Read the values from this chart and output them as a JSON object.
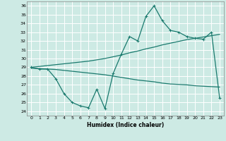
{
  "xlabel": "Humidex (Indice chaleur)",
  "bg_color": "#cdeae4",
  "grid_color": "#ffffff",
  "line_color": "#1a7a6e",
  "xlim": [
    -0.5,
    23.5
  ],
  "ylim": [
    23.5,
    36.5
  ],
  "yticks": [
    24,
    25,
    26,
    27,
    28,
    29,
    30,
    31,
    32,
    33,
    34,
    35,
    36
  ],
  "xticks": [
    0,
    1,
    2,
    3,
    4,
    5,
    6,
    7,
    8,
    9,
    10,
    11,
    12,
    13,
    14,
    15,
    16,
    17,
    18,
    19,
    20,
    21,
    22,
    23
  ],
  "line1_x": [
    0,
    1,
    2,
    3,
    4,
    5,
    6,
    7,
    8,
    9,
    10,
    11,
    12,
    13,
    14,
    15,
    16,
    17,
    18,
    19,
    20,
    21,
    22,
    23
  ],
  "line1_y": [
    29.0,
    28.8,
    28.8,
    27.7,
    26.0,
    25.0,
    24.6,
    24.4,
    26.5,
    24.3,
    28.3,
    30.5,
    32.5,
    32.0,
    34.8,
    36.0,
    34.3,
    33.2,
    33.0,
    32.5,
    32.3,
    32.2,
    33.0,
    25.5
  ],
  "line2_x": [
    0,
    1,
    2,
    3,
    4,
    5,
    6,
    7,
    8,
    9,
    10,
    11,
    12,
    13,
    14,
    15,
    16,
    17,
    18,
    19,
    20,
    21,
    22,
    23
  ],
  "line2_y": [
    29.0,
    29.1,
    29.2,
    29.3,
    29.4,
    29.5,
    29.6,
    29.7,
    29.85,
    30.0,
    30.2,
    30.4,
    30.65,
    30.85,
    31.1,
    31.3,
    31.55,
    31.75,
    31.95,
    32.15,
    32.3,
    32.45,
    32.6,
    32.75
  ],
  "line3_x": [
    0,
    1,
    2,
    3,
    4,
    5,
    6,
    7,
    8,
    9,
    10,
    11,
    12,
    13,
    14,
    15,
    16,
    17,
    18,
    19,
    20,
    21,
    22,
    23
  ],
  "line3_y": [
    28.9,
    28.85,
    28.8,
    28.75,
    28.65,
    28.55,
    28.45,
    28.35,
    28.25,
    28.15,
    28.0,
    27.85,
    27.7,
    27.55,
    27.45,
    27.35,
    27.2,
    27.1,
    27.05,
    27.0,
    26.9,
    26.85,
    26.8,
    26.75
  ]
}
